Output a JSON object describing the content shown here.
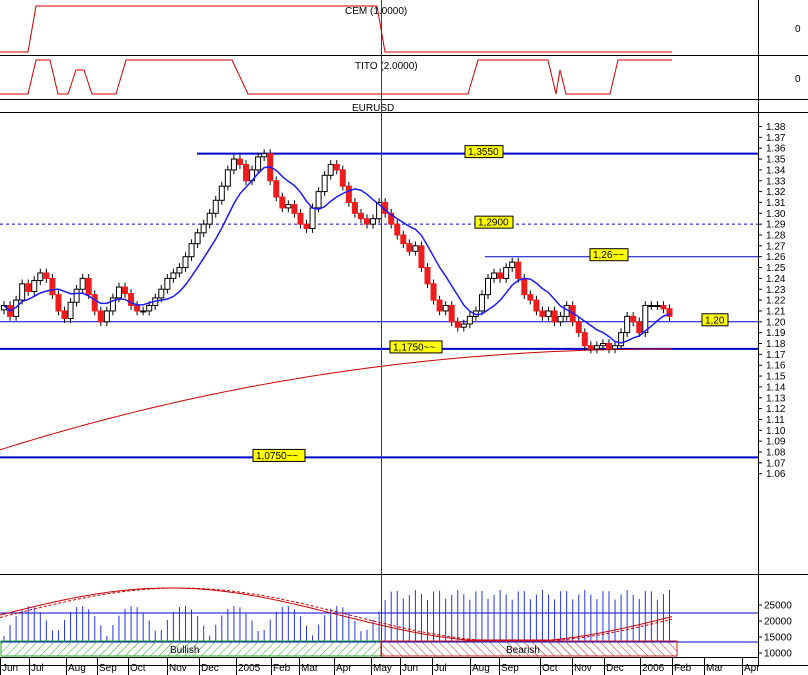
{
  "panels": {
    "cem": {
      "title": "CEM (1.0000)",
      "ytick": "0"
    },
    "tito": {
      "title": "TITO (2.0000)",
      "ytick": "0"
    },
    "price": {
      "title": "EURUSD"
    },
    "volume": {
      "ylabels": [
        "25000",
        "20000",
        "15000",
        "10000"
      ]
    }
  },
  "chart_data": {
    "type": "candlestick",
    "title": "EURUSD",
    "ylim": [
      1.055,
      1.385
    ],
    "price_ticks": [
      "1.38",
      "1.37",
      "1.36",
      "1.35",
      "1.34",
      "1.33",
      "1.32",
      "1.31",
      "1.30",
      "1.29",
      "1.28",
      "1.27",
      "1.26",
      "1.25",
      "1.24",
      "1.23",
      "1.22",
      "1.21",
      "1.20",
      "1.19",
      "1.18",
      "1.17",
      "1.16",
      "1.15",
      "1.14",
      "1.13",
      "1.12",
      "1.11",
      "1.10",
      "1.09",
      "1.08",
      "1.07",
      "1.06"
    ],
    "x_months": [
      "Jun",
      "Jul",
      "Aug",
      "Sep",
      "Oct",
      "Nov",
      "Dec",
      "2005",
      "Feb",
      "Mar",
      "Apr",
      "May",
      "Jun",
      "Jul",
      "Aug",
      "Sep",
      "Oct",
      "Nov",
      "Dec",
      "2006",
      "Feb",
      "Mar",
      "Apr"
    ],
    "closes": [
      1.215,
      1.205,
      1.22,
      1.235,
      1.228,
      1.238,
      1.245,
      1.24,
      1.225,
      1.21,
      1.203,
      1.218,
      1.23,
      1.24,
      1.225,
      1.21,
      1.2,
      1.21,
      1.222,
      1.232,
      1.226,
      1.215,
      1.21,
      1.21,
      1.215,
      1.222,
      1.23,
      1.24,
      1.245,
      1.25,
      1.26,
      1.272,
      1.282,
      1.29,
      1.3,
      1.312,
      1.325,
      1.34,
      1.35,
      1.345,
      1.33,
      1.34,
      1.352,
      1.355,
      1.33,
      1.315,
      1.305,
      1.308,
      1.3,
      1.29,
      1.286,
      1.305,
      1.32,
      1.335,
      1.345,
      1.34,
      1.325,
      1.31,
      1.3,
      1.295,
      1.29,
      1.295,
      1.31,
      1.3,
      1.29,
      1.28,
      1.272,
      1.265,
      1.27,
      1.25,
      1.235,
      1.22,
      1.21,
      1.215,
      1.2,
      1.195,
      1.198,
      1.205,
      1.21,
      1.225,
      1.24,
      1.245,
      1.24,
      1.25,
      1.255,
      1.24,
      1.225,
      1.22,
      1.21,
      1.205,
      1.21,
      1.2,
      1.205,
      1.215,
      1.2,
      1.19,
      1.178,
      1.175,
      1.178,
      1.18,
      1.175,
      1.178,
      1.19,
      1.205,
      1.2,
      1.19,
      1.215,
      1.215,
      1.215,
      1.212,
      1.205
    ],
    "ma_short_label": "",
    "ma_long_label": "",
    "horizontal_levels": [
      {
        "label": "1,3550",
        "value": 1.355
      },
      {
        "label": "1,2900",
        "value": 1.29
      },
      {
        "label": "1,26~~",
        "value": 1.26
      },
      {
        "label": "1,20",
        "value": 1.2
      },
      {
        "label": "1,1750~~",
        "value": 1.175
      },
      {
        "label": "1,0750~~",
        "value": 1.075
      }
    ],
    "zones": [
      {
        "label": "Bullish",
        "state": "bullish"
      },
      {
        "label": "Bearish",
        "state": "bearish"
      }
    ]
  },
  "colors": {
    "up": "#ffffff",
    "down": "#ee1c1c",
    "ma_short": "#1a1aff",
    "ma_long": "#cc0000",
    "level_line": "#0000cc",
    "indicator": "#cc0000",
    "volume_bar": "#2233ee",
    "zone_bullish": "#22aa22",
    "zone_bearish": "#cc2222"
  }
}
